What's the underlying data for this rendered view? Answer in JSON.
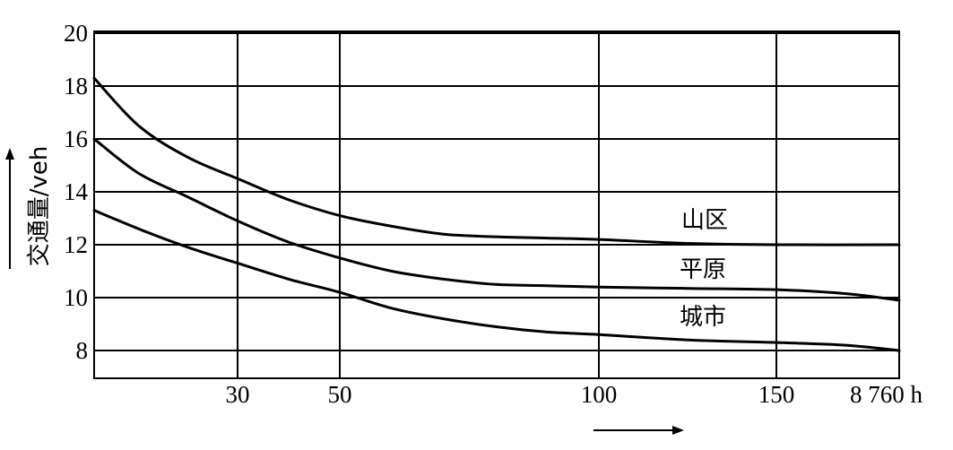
{
  "chart_data": {
    "type": "line",
    "title": "",
    "xlabel": "",
    "ylabel": "交通量/veh",
    "x_unit": "h",
    "x_ticks": [
      {
        "value": 30,
        "label": "30"
      },
      {
        "value": 50,
        "label": "50"
      },
      {
        "value": 100,
        "label": "100"
      },
      {
        "value": 150,
        "label": "150"
      },
      {
        "value": 8760,
        "label": "8 760 h"
      }
    ],
    "y_ticks": [
      8,
      10,
      12,
      14,
      16,
      18,
      20
    ],
    "ylim": [
      7,
      20
    ],
    "grid": true,
    "legend": "none",
    "series": [
      {
        "name": "山区",
        "points": [
          {
            "x": 1,
            "y": 18.3
          },
          {
            "x": 10,
            "y": 16.5
          },
          {
            "x": 20,
            "y": 15.3
          },
          {
            "x": 30,
            "y": 14.5
          },
          {
            "x": 40,
            "y": 13.7
          },
          {
            "x": 50,
            "y": 13.1
          },
          {
            "x": 60,
            "y": 12.7
          },
          {
            "x": 70,
            "y": 12.4
          },
          {
            "x": 80,
            "y": 12.3
          },
          {
            "x": 90,
            "y": 12.25
          },
          {
            "x": 100,
            "y": 12.2
          },
          {
            "x": 125,
            "y": 12.05
          },
          {
            "x": 150,
            "y": 12.0
          },
          {
            "x": 8760,
            "y": 12.0
          }
        ]
      },
      {
        "name": "平原",
        "points": [
          {
            "x": 1,
            "y": 16.0
          },
          {
            "x": 10,
            "y": 14.7
          },
          {
            "x": 20,
            "y": 13.8
          },
          {
            "x": 30,
            "y": 12.9
          },
          {
            "x": 40,
            "y": 12.1
          },
          {
            "x": 50,
            "y": 11.5
          },
          {
            "x": 60,
            "y": 11.0
          },
          {
            "x": 70,
            "y": 10.7
          },
          {
            "x": 80,
            "y": 10.5
          },
          {
            "x": 90,
            "y": 10.45
          },
          {
            "x": 100,
            "y": 10.4
          },
          {
            "x": 125,
            "y": 10.35
          },
          {
            "x": 150,
            "y": 10.3
          },
          {
            "x": 1500,
            "y": 10.15
          },
          {
            "x": 8760,
            "y": 9.9
          }
        ]
      },
      {
        "name": "城市",
        "points": [
          {
            "x": 1,
            "y": 13.3
          },
          {
            "x": 10,
            "y": 12.6
          },
          {
            "x": 20,
            "y": 11.9
          },
          {
            "x": 30,
            "y": 11.3
          },
          {
            "x": 40,
            "y": 10.7
          },
          {
            "x": 50,
            "y": 10.2
          },
          {
            "x": 60,
            "y": 9.6
          },
          {
            "x": 70,
            "y": 9.2
          },
          {
            "x": 80,
            "y": 8.9
          },
          {
            "x": 90,
            "y": 8.7
          },
          {
            "x": 100,
            "y": 8.6
          },
          {
            "x": 125,
            "y": 8.4
          },
          {
            "x": 150,
            "y": 8.3
          },
          {
            "x": 1500,
            "y": 8.2
          },
          {
            "x": 8760,
            "y": 8.0
          }
        ]
      }
    ]
  }
}
